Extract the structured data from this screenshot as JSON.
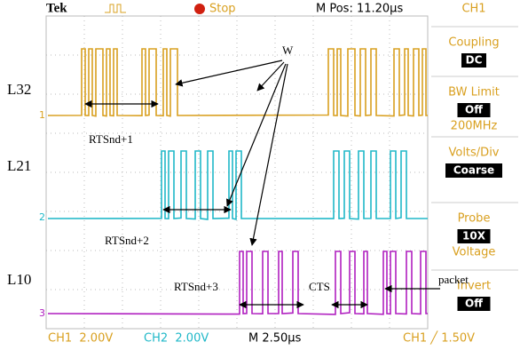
{
  "header": {
    "brand": "Tek",
    "state": "Stop",
    "position": "M Pos: 11.20µs",
    "channel": "CH1"
  },
  "traces": [
    {
      "label": "L32",
      "marker": "1"
    },
    {
      "label": "L21",
      "marker": "2"
    },
    {
      "label": "L10",
      "marker": "3"
    }
  ],
  "annotations": {
    "w": "W",
    "rts1": "RTSnd+1",
    "rts2": "RTSnd+2",
    "rts3": "RTSnd+3",
    "cts": "CTS",
    "packet": "packet"
  },
  "side_menu": [
    {
      "title": "Coupling",
      "value": "DC"
    },
    {
      "title": "BW Limit",
      "value": "Off",
      "extra": "200MHz"
    },
    {
      "title": "Volts/Div",
      "value": "Coarse"
    },
    {
      "title": "Probe",
      "value": "10X",
      "extra": "Voltage"
    },
    {
      "title": "Invert",
      "value": "Off"
    }
  ],
  "footer": {
    "ch1": "CH1  2.00V",
    "ch2": "CH2  2.00V",
    "time": "M 2.50µs",
    "trigger": "CH1 ╱ 1.50V"
  }
}
